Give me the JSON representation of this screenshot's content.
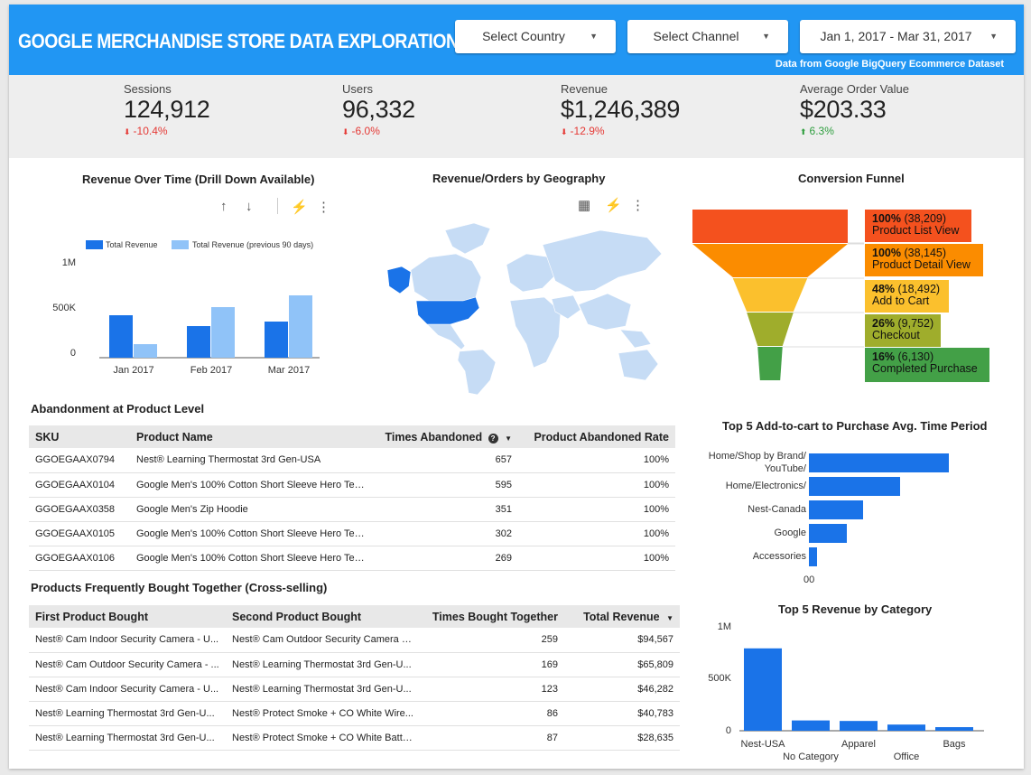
{
  "header": {
    "title": "GOOGLE MERCHANDISE STORE DATA EXPLORATION",
    "country_label": "Select Country",
    "channel_label": "Select Channel",
    "date_range": "Jan 1, 2017 - Mar 31, 2017",
    "data_source": "Data from Google BigQuery Ecommerce Dataset"
  },
  "kpis": [
    {
      "label": "Sessions",
      "value": "124,912",
      "change": "-10.4%",
      "trend": "down"
    },
    {
      "label": "Users",
      "value": "96,332",
      "change": "-6.0%",
      "trend": "down"
    },
    {
      "label": "Revenue",
      "value": "$1,246,389",
      "change": "-12.9%",
      "trend": "down"
    },
    {
      "label": "Average Order Value",
      "value": "$203.33",
      "change": "6.3%",
      "trend": "up"
    }
  ],
  "revenue_chart": {
    "title": "Revenue Over Time (Drill Down Available)",
    "legend": [
      "Total Revenue",
      "Total Revenue (previous 90 days)"
    ],
    "y_ticks": [
      "1M",
      "500K",
      "0"
    ],
    "colors": {
      "current": "#1a73e8",
      "previous": "#90c3f8"
    }
  },
  "geo_chart": {
    "title": "Revenue/Orders by Geography",
    "highlight_color": "#1a73e8",
    "base_color": "#c6dcf5"
  },
  "funnel": {
    "title": "Conversion Funnel",
    "stages": [
      {
        "pct": "100%",
        "count": "(38,209)",
        "label": "Product List View",
        "color": "#f4511e"
      },
      {
        "pct": "100%",
        "count": "(38,145)",
        "label": "Product Detail View",
        "color": "#fb8c00"
      },
      {
        "pct": "48%",
        "count": "(18,492)",
        "label": "Add to Cart",
        "color": "#fbc02d"
      },
      {
        "pct": "26%",
        "count": "(9,752)",
        "label": "Checkout",
        "color": "#9fad2c"
      },
      {
        "pct": "16%",
        "count": "(6,130)",
        "label": "Completed Purchase",
        "color": "#43a047"
      }
    ]
  },
  "abandonment": {
    "title": "Abandonment at Product Level",
    "columns": [
      "SKU",
      "Product Name",
      "Times Abandoned",
      "Product Abandoned Rate"
    ],
    "rows": [
      [
        "GGOEGAAX0794",
        "Nest® Learning Thermostat 3rd Gen-USA",
        "657",
        "100%"
      ],
      [
        "GGOEGAAX0104",
        "Google Men's 100% Cotton Short Sleeve Hero Tee ...",
        "595",
        "100%"
      ],
      [
        "GGOEGAAX0358",
        "Google Men's Zip Hoodie",
        "351",
        "100%"
      ],
      [
        "GGOEGAAX0105",
        "Google Men's 100% Cotton Short Sleeve Hero Tee ...",
        "302",
        "100%"
      ],
      [
        "GGOEGAAX0106",
        "Google Men's 100% Cotton Short Sleeve Hero Tee ...",
        "269",
        "100%"
      ]
    ]
  },
  "crosssell": {
    "title": "Products Frequently Bought Together (Cross-selling)",
    "columns": [
      "First Product Bought",
      "Second Product Bought",
      "Times Bought Together",
      "Total Revenue"
    ],
    "rows": [
      [
        "Nest® Cam Indoor Security Camera - U...",
        "Nest® Cam Outdoor Security Camera - ...",
        "259",
        "$94,567"
      ],
      [
        "Nest® Cam Outdoor Security Camera - ...",
        "Nest® Learning Thermostat 3rd Gen-U...",
        "169",
        "$65,809"
      ],
      [
        "Nest® Cam Indoor Security Camera - U...",
        "Nest® Learning Thermostat 3rd Gen-U...",
        "123",
        "$46,282"
      ],
      [
        "Nest® Learning Thermostat 3rd Gen-U...",
        "Nest® Protect Smoke + CO White Wire...",
        "86",
        "$40,783"
      ],
      [
        "Nest® Learning Thermostat 3rd Gen-U...",
        "Nest® Protect Smoke + CO White Batte...",
        "87",
        "$28,635"
      ]
    ]
  },
  "addtocart": {
    "title": "Top 5 Add-to-cart to Purchase Avg. Time Period",
    "x_tick": "00",
    "bar_color": "#1a73e8"
  },
  "category_rev": {
    "title": "Top 5 Revenue by Category",
    "y_ticks": [
      "1M",
      "500K",
      "0"
    ],
    "bar_color": "#1a73e8"
  },
  "chart_data": [
    {
      "type": "bar",
      "title": "Revenue Over Time (Drill Down Available)",
      "categories": [
        "Jan 2017",
        "Feb 2017",
        "Mar 2017"
      ],
      "series": [
        {
          "name": "Total Revenue",
          "values": [
            470000,
            350000,
            400000
          ]
        },
        {
          "name": "Total Revenue (previous 90 days)",
          "values": [
            150000,
            560000,
            690000
          ]
        }
      ],
      "ylim": [
        0,
        1000000
      ],
      "legend": "top"
    },
    {
      "type": "bar",
      "title": "Top 5 Add-to-cart to Purchase Avg. Time Period",
      "orientation": "horizontal",
      "categories": [
        "Home/Shop by Brand/YouTube/",
        "Home/Electronics/",
        "Nest-Canada",
        "Google",
        "Accessories"
      ],
      "values": [
        100,
        65,
        39,
        27,
        6
      ]
    },
    {
      "type": "bar",
      "title": "Top 5 Revenue by Category",
      "categories": [
        "Nest-USA",
        "No Category",
        "Apparel",
        "Office",
        "Bags"
      ],
      "values": [
        800000,
        100000,
        95000,
        60000,
        35000
      ],
      "ylim": [
        0,
        1000000
      ]
    },
    {
      "type": "funnel",
      "title": "Conversion Funnel",
      "categories": [
        "Product List View",
        "Product Detail View",
        "Add to Cart",
        "Checkout",
        "Completed Purchase"
      ],
      "values": [
        38209,
        38145,
        18492,
        9752,
        6130
      ],
      "percent": [
        100,
        100,
        48,
        26,
        16
      ]
    }
  ]
}
